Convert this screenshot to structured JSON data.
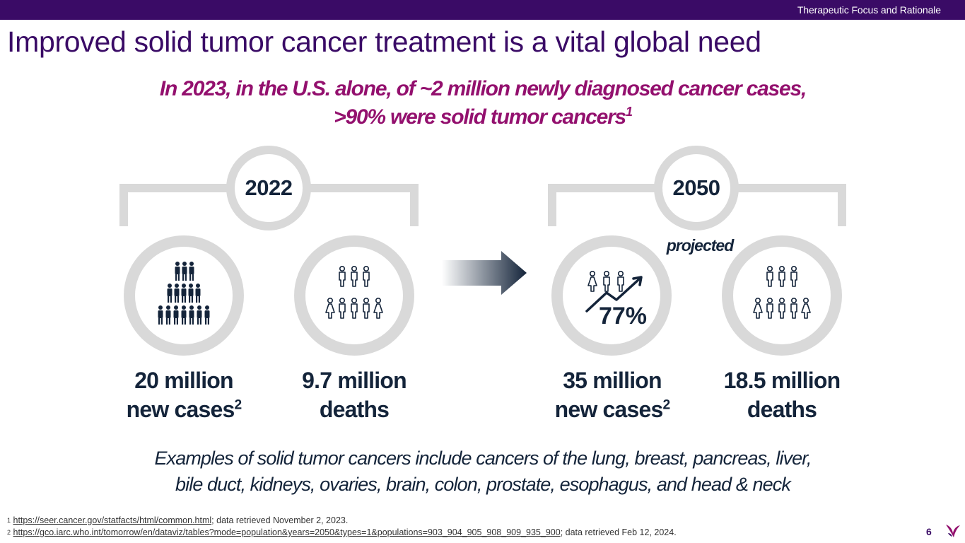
{
  "header": {
    "section_label": "Therapeutic Focus and Rationale"
  },
  "title": "Improved solid tumor cancer treatment is a vital global need",
  "subtitle": {
    "line1": "In 2023, in the U.S. alone, of ~2 million newly diagnosed cancer cases,",
    "line2": ">90% were solid tumor cancers",
    "sup": "1"
  },
  "groups": [
    {
      "year": "2022",
      "stats": [
        {
          "value": "20 million",
          "label": "new cases",
          "sup": "2",
          "icon": "crowd-icon"
        },
        {
          "value": "9.7 million",
          "label": "deaths",
          "sup": "",
          "icon": "people-outline-icon"
        }
      ]
    },
    {
      "year": "2050",
      "note": "projected",
      "growth_percent": "77%",
      "stats": [
        {
          "value": "35 million",
          "label": "new cases",
          "sup": "2",
          "icon": "growth-people-icon"
        },
        {
          "value": "18.5 million",
          "label": "deaths",
          "sup": "",
          "icon": "people-outline-icon"
        }
      ]
    }
  ],
  "examples": {
    "line1": "Examples of solid tumor cancers include cancers of the lung, breast, pancreas, liver,",
    "line2": "bile duct, kidneys, ovaries, brain, colon, prostate, esophagus, and head & neck"
  },
  "footnotes": [
    {
      "num": "1",
      "link": "https://seer.cancer.gov/statfacts/html/common.html",
      "text": "; data retrieved November 2, 2023."
    },
    {
      "num": "2",
      "link": "https://gco.iarc.who.int/tomorrow/en/dataviz/tables?mode=population&years=2050&types=1&populations=903_904_905_908_909_935_900",
      "text": "; data retrieved Feb 12, 2024."
    }
  ],
  "page_number": "6",
  "colors": {
    "brand": "#3a0b66",
    "accent": "#93106e",
    "text": "#14243a",
    "ring": "#d9d9d9"
  }
}
